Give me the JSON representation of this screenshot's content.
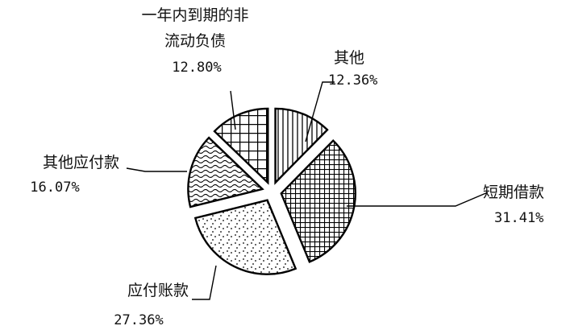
{
  "chart_data": {
    "type": "pie",
    "title": "",
    "unit": "%",
    "slices": [
      {
        "label": "其他",
        "value": 12.36,
        "value_text": "12.36%",
        "pattern": "vertical-lines"
      },
      {
        "label": "短期借款",
        "value": 31.41,
        "value_text": "31.41%",
        "pattern": "fine-grid"
      },
      {
        "label": "应付账款",
        "value": 27.36,
        "value_text": "27.36%",
        "pattern": "dots"
      },
      {
        "label": "其他应付款",
        "value": 16.07,
        "value_text": "16.07%",
        "pattern": "waves"
      },
      {
        "label_lines": [
          "一年内到期的非",
          "流动负债"
        ],
        "label": "一年内到期的非流动负债",
        "value": 12.8,
        "value_text": "12.80%",
        "pattern": "coarse-grid"
      }
    ],
    "exploded": true,
    "legend": "none",
    "colors": {
      "stroke": "#000000",
      "fill": "#ffffff"
    }
  }
}
